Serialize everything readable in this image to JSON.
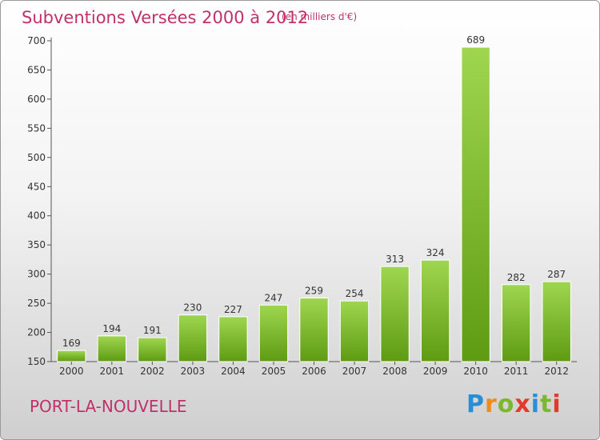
{
  "title": "Subventions Versées 2000 à 2012",
  "subtitle": "(en milliers d'€)",
  "place": "PORT-LA-NOUVELLE",
  "logo_letters": [
    "P",
    "r",
    "o",
    "x",
    "i",
    "t",
    "i"
  ],
  "colors": {
    "title": "#c0306a",
    "bar_top": "#9fd650",
    "bar_bottom": "#5e9b12"
  },
  "chart_data": {
    "type": "bar",
    "categories": [
      "2000",
      "2001",
      "2002",
      "2003",
      "2004",
      "2005",
      "2006",
      "2007",
      "2008",
      "2009",
      "2010",
      "2011",
      "2012"
    ],
    "values": [
      169,
      194,
      191,
      230,
      227,
      247,
      259,
      254,
      313,
      324,
      689,
      282,
      287
    ],
    "ylim": [
      150,
      700
    ],
    "yticks": [
      150,
      200,
      250,
      300,
      350,
      400,
      450,
      500,
      550,
      600,
      650,
      700
    ],
    "grid": false,
    "legend": "none"
  }
}
